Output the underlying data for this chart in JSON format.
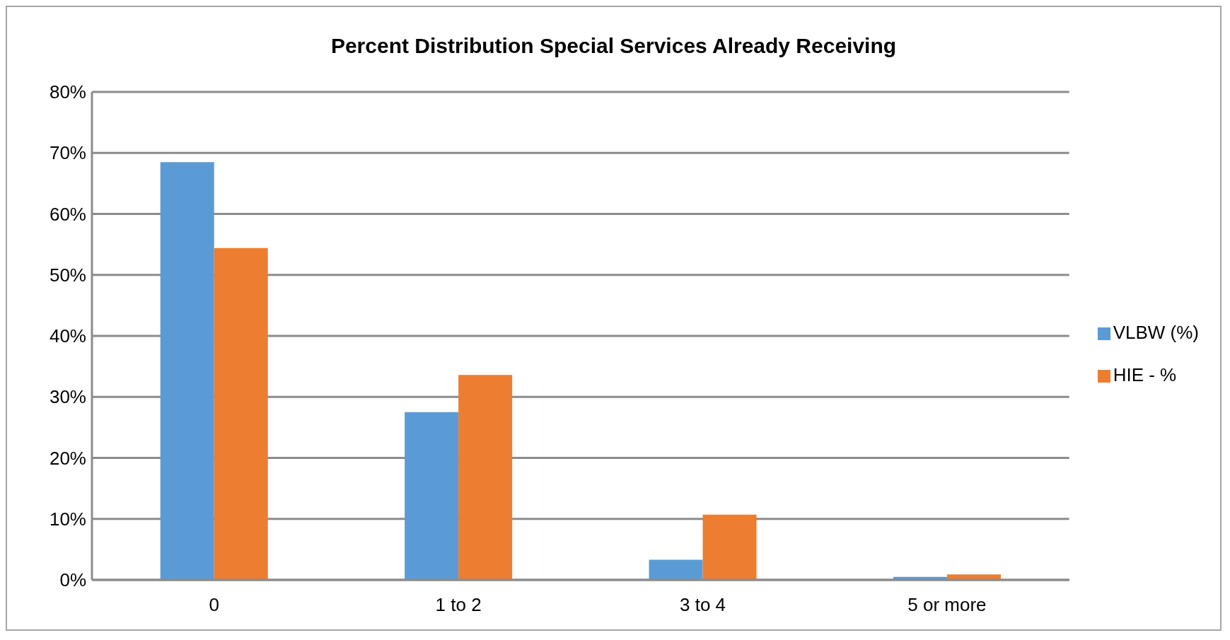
{
  "chart_data": {
    "type": "bar",
    "title": "Percent Distribution Special Services Already Receiving",
    "categories": [
      "0",
      "1 to 2",
      "3 to 4",
      "5 or more"
    ],
    "series": [
      {
        "name": "VLBW (%)",
        "color": "#5b9bd5",
        "values": [
          68.5,
          27.5,
          3.3,
          0.5
        ]
      },
      {
        "name": "HIE - %",
        "color": "#ed7d31",
        "values": [
          54.4,
          33.6,
          10.7,
          0.9
        ]
      }
    ],
    "ylim": [
      0,
      80
    ],
    "yticks": [
      {
        "value": 0,
        "label": "0%"
      },
      {
        "value": 10,
        "label": "10%"
      },
      {
        "value": 20,
        "label": "20%"
      },
      {
        "value": 30,
        "label": "30%"
      },
      {
        "value": 40,
        "label": "40%"
      },
      {
        "value": 50,
        "label": "50%"
      },
      {
        "value": 60,
        "label": "60%"
      },
      {
        "value": 70,
        "label": "70%"
      },
      {
        "value": 80,
        "label": "80%"
      }
    ],
    "grid": "y",
    "legend": "right"
  }
}
